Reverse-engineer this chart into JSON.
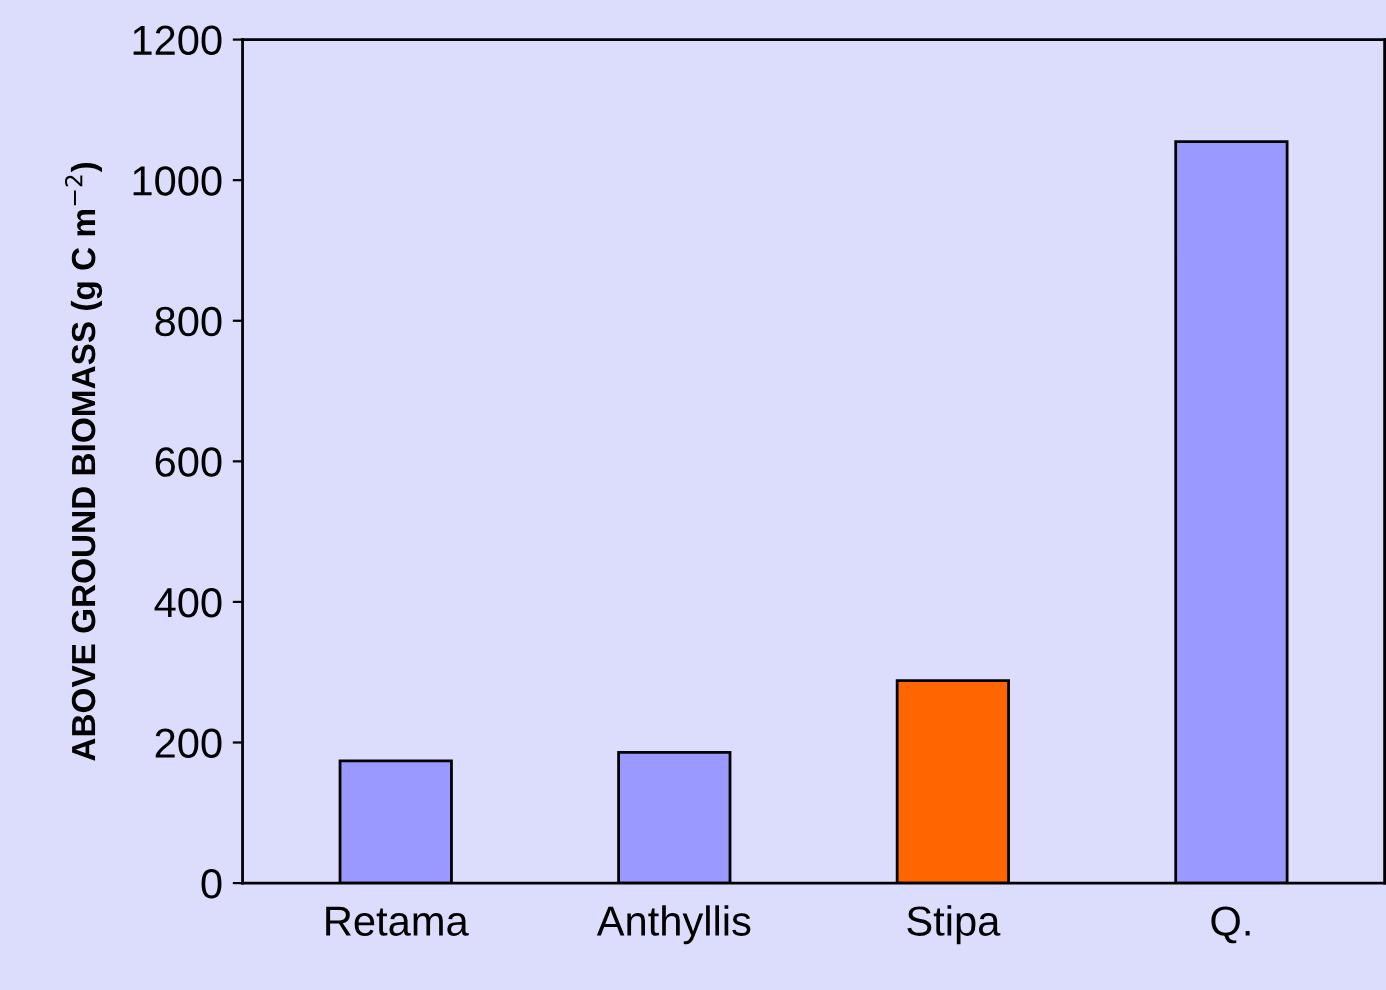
{
  "chart_data": {
    "type": "bar",
    "ylabel": "ABOVE GROUND BIOMASS (g C m$^{−2}$)",
    "categories": [
      "Retama",
      "Anthyllis",
      "Stipa",
      "Q."
    ],
    "values": [
      174,
      186,
      288,
      1055
    ],
    "colors": [
      "#9999ff",
      "#9999ff",
      "#ff6600",
      "#9999ff"
    ],
    "ylim": [
      0,
      1200
    ],
    "yticks": [
      0,
      200,
      400,
      600,
      800,
      1000,
      1200
    ],
    "grid": false
  }
}
